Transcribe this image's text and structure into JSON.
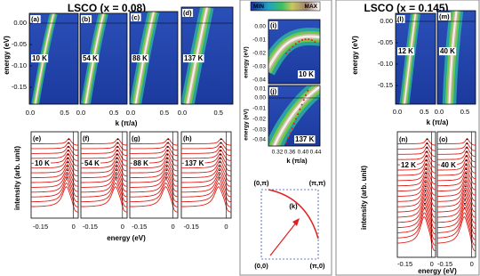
{
  "left": {
    "title": "LSCO (x = 0.08)",
    "y_label": "energy (eV)",
    "x_label": "k (π/a)",
    "y_ticks": [
      "0.00",
      "-0.05",
      "-0.10",
      "-0.15"
    ],
    "x_ticks": [
      "0.0",
      "0.5"
    ],
    "panels": [
      {
        "tag": "(a)",
        "temp": "10 K"
      },
      {
        "tag": "(b)",
        "temp": "54 K"
      },
      {
        "tag": "(c)",
        "temp": "88 K"
      },
      {
        "tag": "(d)",
        "temp": "137 K"
      }
    ],
    "edc": {
      "y_label": "intensity (arb. unit)",
      "x_label": "energy (eV)",
      "x_ticks": [
        "-0.15",
        "0"
      ],
      "panels": [
        {
          "tag": "(e)",
          "temp": "10 K"
        },
        {
          "tag": "(f)",
          "temp": "54 K"
        },
        {
          "tag": "(g)",
          "temp": "88 K"
        },
        {
          "tag": "(h)",
          "temp": "137 K"
        }
      ]
    }
  },
  "middle": {
    "colorbar": {
      "min": "MIN",
      "max": "MAX"
    },
    "y_label": "energy (eV)",
    "x_label": "k (π/a)",
    "i_y_ticks": [
      "0.00",
      "-0.01",
      "-0.02",
      "-0.03",
      "-0.04"
    ],
    "j_y_ticks": [
      "0.01",
      "0.00",
      "-0.01",
      "-0.02",
      "-0.03",
      "-0.04"
    ],
    "x_ticks": [
      "0.32",
      "0.36",
      "0.40",
      "0.44"
    ],
    "panels": [
      {
        "tag": "(i)",
        "temp": "10 K"
      },
      {
        "tag": "(j)",
        "temp": "137 K"
      }
    ],
    "bz": {
      "tag": "(k)",
      "corners": [
        "(0,π)",
        "(π,π)",
        "(0,0)",
        "(π,0)"
      ]
    }
  },
  "right": {
    "title": "LSCO (x = 0.145)",
    "y_label": "energy (eV)",
    "x_label": "k (π/a)",
    "y_ticks": [
      "0.00",
      "-0.05",
      "-0.10",
      "-0.15"
    ],
    "x_ticks": [
      "0.0",
      "0.5"
    ],
    "panels": [
      {
        "tag": "(l)",
        "temp": "12 K"
      },
      {
        "tag": "(m)",
        "temp": "40 K"
      }
    ],
    "edc": {
      "y_label": "intensity (arb. unit)",
      "x_label": "energy (eV)",
      "x_ticks": [
        "-0.15",
        "0"
      ],
      "panels": [
        {
          "tag": "(n)",
          "temp": "12 K"
        },
        {
          "tag": "(o)",
          "temp": "40 K"
        }
      ]
    }
  }
}
